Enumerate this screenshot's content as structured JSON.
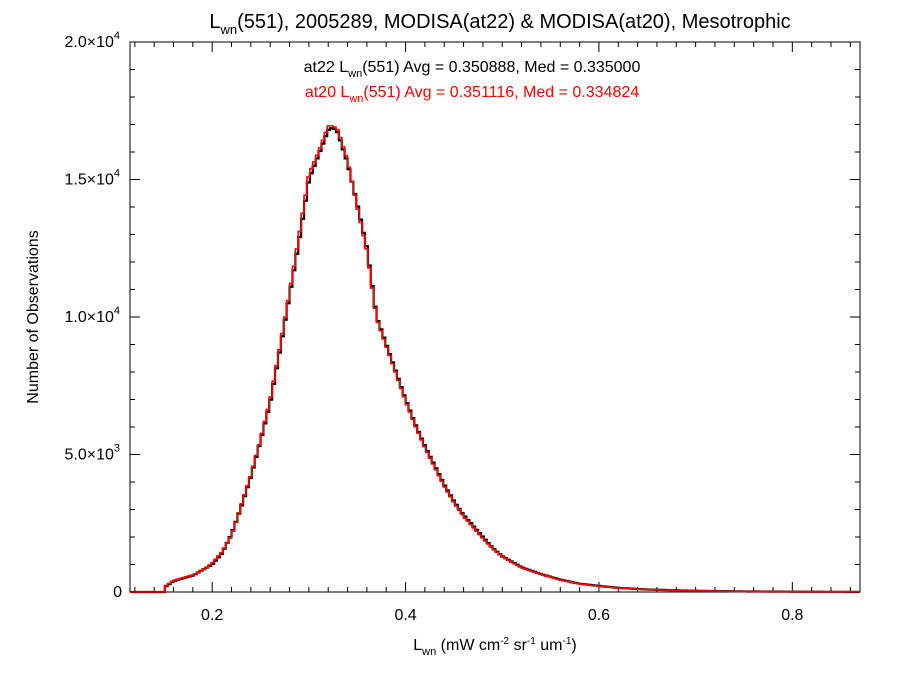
{
  "chart_data": {
    "type": "line",
    "title": {
      "pre": "L",
      "sub": "wn",
      "post": "(551), 2005289, MODISA(at22) & MODISA(at20), Mesotrophic"
    },
    "xlabel": {
      "pre": "L",
      "sub": "wn",
      "post": " (mW cm",
      "sup1": "-2",
      "mid": " sr",
      "sup2": "-1",
      "mid2": " um",
      "sup3": "-1",
      "end": ")"
    },
    "ylabel": "Number of Observations",
    "xlim": [
      0.115,
      0.87
    ],
    "ylim": [
      0,
      20000
    ],
    "xticks": [
      {
        "value": 0.2,
        "label": "0.2"
      },
      {
        "value": 0.4,
        "label": "0.4"
      },
      {
        "value": 0.6,
        "label": "0.6"
      },
      {
        "value": 0.8,
        "label": "0.8"
      }
    ],
    "yticks": [
      {
        "value": 0,
        "mant": "0",
        "exp": ""
      },
      {
        "value": 5000,
        "mant": "5.0×10",
        "exp": "3"
      },
      {
        "value": 10000,
        "mant": "1.0×10",
        "exp": "4"
      },
      {
        "value": 15000,
        "mant": "1.5×10",
        "exp": "4"
      },
      {
        "value": 20000,
        "mant": "2.0×10",
        "exp": "4"
      }
    ],
    "annotations": [
      {
        "pre": "at22 L",
        "sub": "wn",
        "post": "(551) Avg = 0.350888, Med = 0.335000",
        "color": "#000000"
      },
      {
        "pre": "at20 L",
        "sub": "wn",
        "post": "(551) Avg = 0.351116, Med = 0.334824",
        "color": "#ff0000"
      }
    ],
    "series": [
      {
        "color": "#000000",
        "x": [
          0.115,
          0.15,
          0.152,
          0.16,
          0.17,
          0.18,
          0.19,
          0.2,
          0.21,
          0.22,
          0.23,
          0.24,
          0.25,
          0.26,
          0.27,
          0.28,
          0.29,
          0.3,
          0.31,
          0.32,
          0.325,
          0.33,
          0.34,
          0.35,
          0.36,
          0.37,
          0.38,
          0.39,
          0.4,
          0.41,
          0.42,
          0.43,
          0.44,
          0.45,
          0.46,
          0.47,
          0.48,
          0.49,
          0.5,
          0.52,
          0.54,
          0.56,
          0.58,
          0.6,
          0.62,
          0.65,
          0.7,
          0.75,
          0.8,
          0.87
        ],
        "y": [
          0,
          0,
          200,
          400,
          500,
          600,
          800,
          1000,
          1400,
          2100,
          3100,
          4200,
          5500,
          6900,
          8800,
          10800,
          12800,
          15000,
          15900,
          16800,
          16900,
          16700,
          15600,
          14100,
          12500,
          10000,
          9000,
          8000,
          7000,
          6100,
          5300,
          4600,
          3900,
          3300,
          2800,
          2400,
          2000,
          1600,
          1300,
          900,
          650,
          450,
          300,
          220,
          150,
          90,
          45,
          20,
          10,
          5
        ]
      },
      {
        "color": "#ff0000",
        "x": [
          0.115,
          0.15,
          0.152,
          0.16,
          0.17,
          0.18,
          0.19,
          0.2,
          0.21,
          0.22,
          0.23,
          0.24,
          0.25,
          0.26,
          0.27,
          0.28,
          0.29,
          0.3,
          0.31,
          0.32,
          0.325,
          0.33,
          0.34,
          0.35,
          0.36,
          0.37,
          0.38,
          0.39,
          0.4,
          0.41,
          0.42,
          0.43,
          0.44,
          0.45,
          0.46,
          0.47,
          0.48,
          0.49,
          0.5,
          0.52,
          0.54,
          0.56,
          0.58,
          0.6,
          0.62,
          0.65,
          0.7,
          0.75,
          0.8,
          0.87
        ],
        "y": [
          0,
          0,
          220,
          420,
          520,
          620,
          780,
          1050,
          1450,
          2050,
          3150,
          4250,
          5550,
          7000,
          8900,
          10900,
          13000,
          15200,
          16000,
          16950,
          16950,
          16800,
          15700,
          14000,
          12400,
          9950,
          8950,
          7950,
          6950,
          6050,
          5250,
          4550,
          3850,
          3250,
          2750,
          2350,
          1950,
          1580,
          1280,
          880,
          640,
          440,
          290,
          210,
          145,
          88,
          44,
          19,
          9,
          5
        ]
      }
    ]
  }
}
